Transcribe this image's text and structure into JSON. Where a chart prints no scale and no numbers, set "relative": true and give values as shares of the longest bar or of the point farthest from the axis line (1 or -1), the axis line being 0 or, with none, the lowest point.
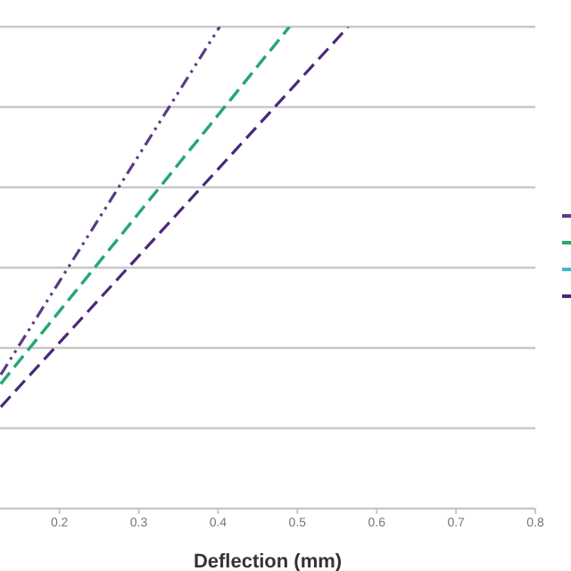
{
  "chart_data": {
    "type": "line",
    "xlabel": "Deflection (mm)",
    "relative": true,
    "xlim": [
      0.125,
      0.8
    ],
    "xticks": [
      0.2,
      0.3,
      0.4,
      0.5,
      0.6,
      0.7,
      0.8
    ],
    "grid": "y",
    "marker": "none",
    "series": [
      {
        "color": "#5b3a86",
        "line_style": "dotted",
        "x": [
          0.126,
          0.402
        ],
        "values": [
          0.278,
          1
        ]
      },
      {
        "color": "#2aa86a",
        "line_style": "dashed",
        "x": [
          0.126,
          0.49
        ],
        "values": [
          0.259,
          1
        ]
      },
      {
        "color": "#3ab8d0",
        "line_style": "dashed",
        "x": [
          0.126,
          0.49
        ],
        "values": [
          0.259,
          1
        ]
      },
      {
        "color": "#4a2878",
        "line_style": "dashed",
        "x": [
          0.126,
          0.564
        ],
        "values": [
          0.211,
          1
        ]
      }
    ]
  }
}
